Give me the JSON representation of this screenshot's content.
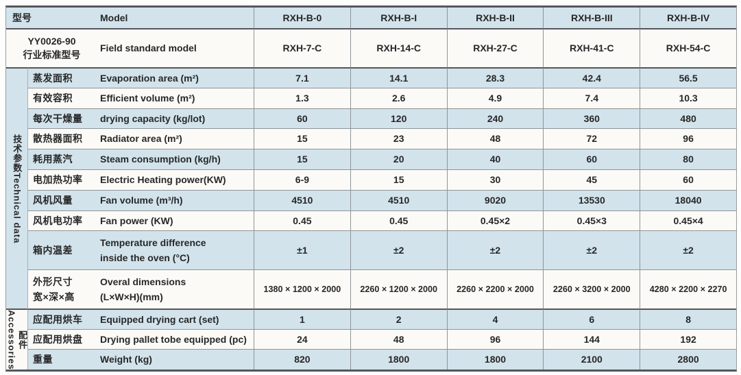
{
  "colors": {
    "row_blue": "#d2e3ec",
    "row_white": "#fbfaf7",
    "border_dark": "#54565a",
    "border_thin": "#8f9496",
    "text": "#272727"
  },
  "header": {
    "zh": "型号",
    "en": "Model",
    "models": [
      "RXH-B-0",
      "RXH-B-I",
      "RXH-B-II",
      "RXH-B-III",
      "RXH-B-IV"
    ]
  },
  "standard": {
    "zh1": "YY0026-90",
    "zh2": "行业标准型号",
    "en": "Field standard model",
    "models": [
      "RXH-7-C",
      "RXH-14-C",
      "RXH-27-C",
      "RXH-41-C",
      "RXH-54-C"
    ]
  },
  "groups": {
    "technical_zh": "技术参数",
    "technical_en": "Technical data",
    "accessories_zh": "配件",
    "accessories_en": "Accessories"
  },
  "rows": [
    {
      "zh": "蒸发面积",
      "en": "Evaporation area (m²)",
      "values": [
        "7.1",
        "14.1",
        "28.3",
        "42.4",
        "56.5"
      ]
    },
    {
      "zh": "有效容积",
      "en": "Efficient volume (m²)",
      "values": [
        "1.3",
        "2.6",
        "4.9",
        "7.4",
        "10.3"
      ]
    },
    {
      "zh": "每次干燥量",
      "en": "drying capacity (kg/lot)",
      "values": [
        "60",
        "120",
        "240",
        "360",
        "480"
      ]
    },
    {
      "zh": "散热器面积",
      "en": "Radiator area (m²)",
      "values": [
        "15",
        "23",
        "48",
        "72",
        "96"
      ]
    },
    {
      "zh": "耗用蒸汽",
      "en": "Steam consumption (kg/h)",
      "values": [
        "15",
        "20",
        "40",
        "60",
        "80"
      ]
    },
    {
      "zh": "电加热功率",
      "en": "Electric Heating power(KW)",
      "values": [
        "6-9",
        "15",
        "30",
        "45",
        "60"
      ]
    },
    {
      "zh": "风机风量",
      "en": "Fan volume (m³/h)",
      "values": [
        "4510",
        "4510",
        "9020",
        "13530",
        "18040"
      ]
    },
    {
      "zh": "风机电功率",
      "en": "Fan power (KW)",
      "values": [
        "0.45",
        "0.45",
        "0.45×2",
        "0.45×3",
        "0.45×4"
      ]
    },
    {
      "zh": "箱内温差",
      "en1": "Temperature difference",
      "en2": "inside the oven (°C)",
      "values": [
        "±1",
        "±2",
        "±2",
        "±2",
        "±2"
      ]
    },
    {
      "zh1": "外形尺寸",
      "zh2": "宽×深×高",
      "en1": "Overal dimensions",
      "en2": "(L×W×H)(mm)",
      "values": [
        "1380 × 1200 × 2000",
        "2260 × 1200 × 2000",
        "2260 × 2200 × 2000",
        "2260 × 3200 × 2000",
        "4280 × 2200 × 2270"
      ]
    },
    {
      "zh": "应配用烘车",
      "en": "Equipped drying cart (set)",
      "values": [
        "1",
        "2",
        "4",
        "6",
        "8"
      ]
    },
    {
      "zh": "应配用烘盘",
      "en": "Drying pallet tobe equipped (pc)",
      "values": [
        "24",
        "48",
        "96",
        "144",
        "192"
      ]
    },
    {
      "zh": "重量",
      "en": "Weight (kg)",
      "values": [
        "820",
        "1800",
        "1800",
        "2100",
        "2800"
      ]
    }
  ]
}
